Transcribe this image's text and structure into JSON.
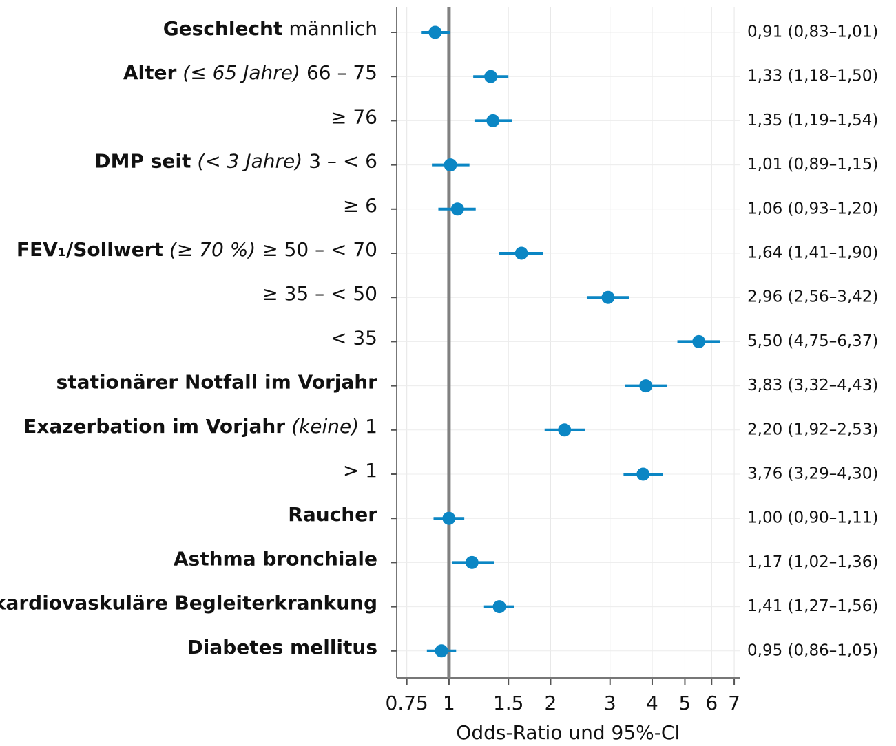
{
  "chart_data": {
    "type": "forest",
    "xlabel": "Odds-Ratio und 95%-CI",
    "log_x": true,
    "grid": true,
    "color": "#0b86c4",
    "reference_line": 1,
    "reference_color": "#808080",
    "xlim": [
      0.7,
      7.3
    ],
    "xticks": [
      0.75,
      1,
      1.5,
      2,
      3,
      4,
      5,
      6,
      7
    ],
    "labels": [
      {
        "group": "Geschlecht",
        "level": "männlich"
      },
      {
        "group": "Alter",
        "reference": "(≤ 65 Jahre)",
        "level": "66 – 75"
      },
      {
        "level": "≥ 76"
      },
      {
        "group": "DMP seit",
        "reference": "(< 3 Jahre)",
        "level": "3 – < 6"
      },
      {
        "level": "≥ 6"
      },
      {
        "group": "FEV₁/Sollwert",
        "reference": "(≥ 70 %)",
        "level": "≥ 50 – < 70"
      },
      {
        "level": "≥ 35 – < 50"
      },
      {
        "level": "< 35"
      },
      {
        "group": "stationärer Notfall im Vorjahr"
      },
      {
        "group": "Exazerbation im Vorjahr",
        "reference": "(keine)",
        "level": "1"
      },
      {
        "level": "> 1"
      },
      {
        "group": "Raucher"
      },
      {
        "group": "Asthma bronchiale"
      },
      {
        "group": "kardiovaskuläre Begleiterkrankung"
      },
      {
        "group": "Diabetes mellitus"
      }
    ],
    "values": [
      0.91,
      1.33,
      1.35,
      1.01,
      1.06,
      1.64,
      2.96,
      5.5,
      3.83,
      2.2,
      3.76,
      1.0,
      1.17,
      1.41,
      0.95
    ],
    "lower": [
      0.83,
      1.18,
      1.19,
      0.89,
      0.93,
      1.41,
      2.56,
      4.75,
      3.32,
      1.92,
      3.29,
      0.9,
      1.02,
      1.27,
      0.86
    ],
    "upper": [
      1.01,
      1.5,
      1.54,
      1.15,
      1.2,
      1.9,
      3.42,
      6.37,
      4.43,
      2.53,
      4.3,
      1.11,
      1.36,
      1.56,
      1.05
    ],
    "value_labels": [
      "0,91 (0,83–1,01)",
      "1,33 (1,18–1,50)",
      "1,35 (1,19–1,54)",
      "1,01 (0,89–1,15)",
      "1,06 (0,93–1,20)",
      "1,64 (1,41–1,90)",
      "2,96 (2,56–3,42)",
      "5,50 (4,75–6,37)",
      "3,83 (3,32–4,43)",
      "2,20 (1,92–2,53)",
      "3,76 (3,29–4,30)",
      "1,00 (0,90–1,11)",
      "1,17 (1,02–1,36)",
      "1,41 (1,27–1,56)",
      "0,95 (0,86–1,05)"
    ]
  }
}
